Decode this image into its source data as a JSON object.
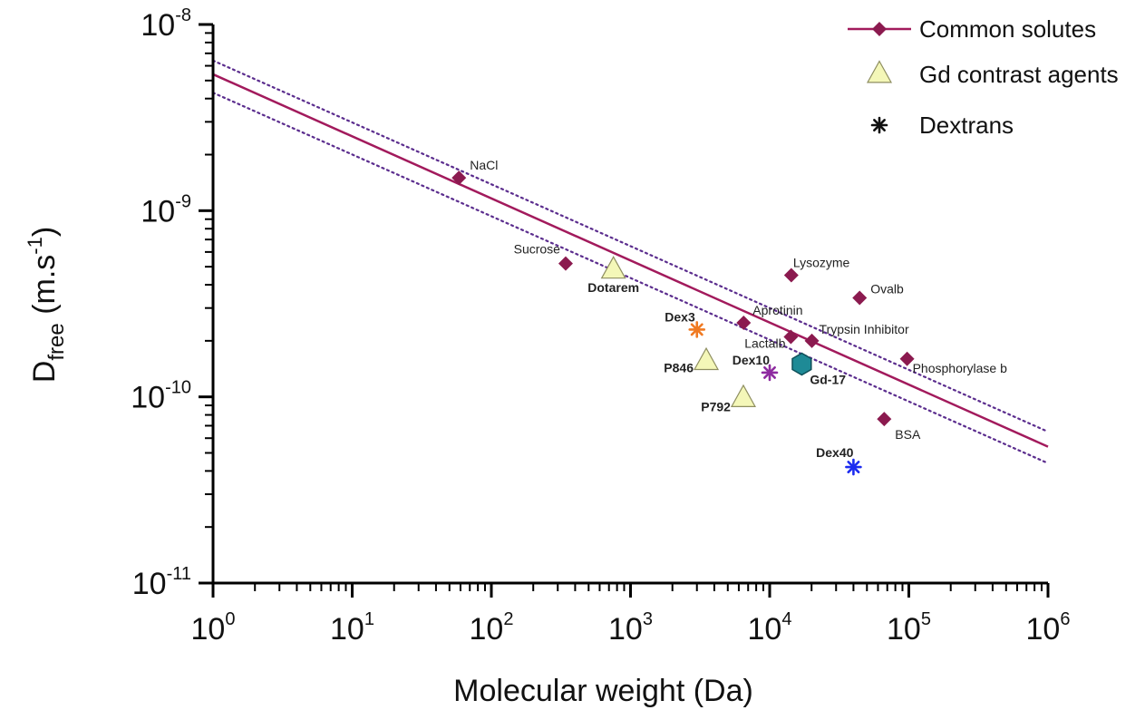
{
  "colors": {
    "common": "#8B1A4F",
    "fit_line": "#A21A5C",
    "ci_line": "#5B2D8E",
    "gd_fill": "#F4F7B8",
    "gd_stroke": "#8E8E60",
    "dex3": "#F07A22",
    "dex10": "#8E2BA0",
    "dex40": "#1C2BF0",
    "gd17_fill": "#1E8A96",
    "gd17_stroke": "#0E4F58"
  },
  "chart_data": {
    "type": "scatter",
    "xlabel": "Molecular weight (Da)",
    "ylabel_main": "D",
    "ylabel_sub": "free",
    "ylabel_unit_pre": " (m.s",
    "ylabel_unit_exp": "-1",
    "ylabel_unit_post": ")",
    "x_scale": "log",
    "y_scale": "log",
    "xlim": [
      1,
      1000000
    ],
    "ylim": [
      1e-11,
      1e-08
    ],
    "x_ticks": [
      {
        "value": 1,
        "base": "10",
        "exp": "0"
      },
      {
        "value": 10,
        "base": "10",
        "exp": "1"
      },
      {
        "value": 100,
        "base": "10",
        "exp": "2"
      },
      {
        "value": 1000,
        "base": "10",
        "exp": "3"
      },
      {
        "value": 10000,
        "base": "10",
        "exp": "4"
      },
      {
        "value": 100000,
        "base": "10",
        "exp": "5"
      },
      {
        "value": 1000000,
        "base": "10",
        "exp": "6"
      }
    ],
    "y_ticks": [
      {
        "value": 1e-08,
        "base": "10",
        "exp": "-8"
      },
      {
        "value": 1e-09,
        "base": "10",
        "exp": "-9"
      },
      {
        "value": 1e-10,
        "base": "10",
        "exp": "-10"
      },
      {
        "value": 1e-11,
        "base": "10",
        "exp": "-11"
      }
    ],
    "legend_placement": "top-right",
    "legend": [
      {
        "key": "common",
        "label": "Common solutes"
      },
      {
        "key": "gd",
        "label": "Gd contrast agents"
      },
      {
        "key": "dex",
        "label": "Dextrans"
      }
    ],
    "fit_line": {
      "x": [
        1,
        1000000
      ],
      "y": [
        5.4e-09,
        5.4e-11
      ]
    },
    "ci_upper": {
      "x": [
        1,
        1000000
      ],
      "y": [
        6.4e-09,
        6.5e-11
      ]
    },
    "ci_lower": {
      "x": [
        1,
        1000000
      ],
      "y": [
        4.3e-09,
        4.4e-11
      ]
    },
    "common_solutes": [
      {
        "name": "NaCl",
        "x": 58.5,
        "y": 1.5e-09
      },
      {
        "name": "Sucrose",
        "x": 342,
        "y": 5.2e-10
      },
      {
        "name": "Aprotinin",
        "x": 6500,
        "y": 2.5e-10
      },
      {
        "name": "Lactalb",
        "x": 14200,
        "y": 2.1e-10
      },
      {
        "name": "Lysozyme",
        "x": 14300,
        "y": 4.5e-10
      },
      {
        "name": "Trypsin Inhibitor",
        "x": 20100,
        "y": 2e-10
      },
      {
        "name": "Ovalb",
        "x": 44300,
        "y": 3.4e-10
      },
      {
        "name": "BSA",
        "x": 66500,
        "y": 7.6e-11
      },
      {
        "name": "Phosphorylase b",
        "x": 97200,
        "y": 1.6e-10
      }
    ],
    "gd_agents": [
      {
        "name": "Dotarem",
        "x": 754,
        "y": 4.8e-10
      },
      {
        "name": "P846",
        "x": 3500,
        "y": 1.55e-10
      },
      {
        "name": "P792",
        "x": 6470,
        "y": 9.8e-11
      }
    ],
    "dextrans": [
      {
        "name": "Dex3",
        "x": 3000,
        "y": 2.3e-10,
        "color_key": "dex3"
      },
      {
        "name": "Dex10",
        "x": 10000,
        "y": 1.35e-10,
        "color_key": "dex10"
      },
      {
        "name": "Dex40",
        "x": 40000,
        "y": 4.2e-11,
        "color_key": "dex40"
      }
    ],
    "other": [
      {
        "name": "Gd-17",
        "x": 17000,
        "y": 1.5e-10
      }
    ]
  }
}
